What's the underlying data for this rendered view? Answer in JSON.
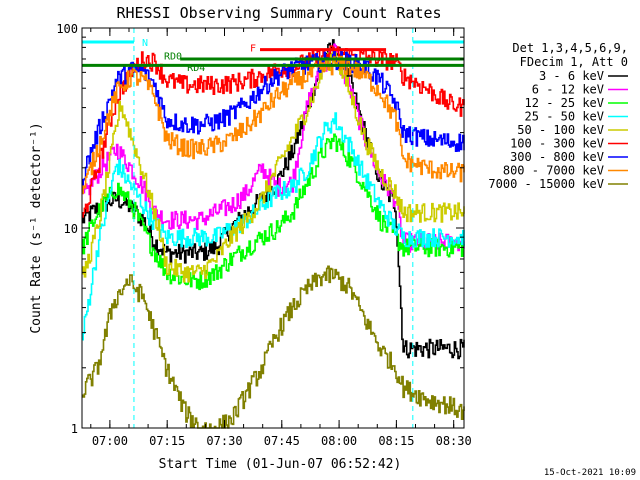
{
  "chart_data": {
    "type": "line",
    "title": "RHESSI Observing Summary Count Rates",
    "xlabel": "Start Time (01-Jun-07 06:52:42)",
    "ylabel": "Count Rate (s⁻¹ detector⁻¹)",
    "ylog": true,
    "ylim": [
      1,
      100
    ],
    "xlim_minutes_from_start": [
      0,
      100
    ],
    "x_ticks": [
      {
        "label": "07:00",
        "minutes": 7.3
      },
      {
        "label": "07:15",
        "minutes": 22.3
      },
      {
        "label": "07:30",
        "minutes": 37.3
      },
      {
        "label": "07:45",
        "minutes": 52.3
      },
      {
        "label": "08:00",
        "minutes": 67.3
      },
      {
        "label": "08:15",
        "minutes": 82.3
      },
      {
        "label": "08:30",
        "minutes": 97.3
      }
    ],
    "y_ticks": [
      {
        "label": "1",
        "value": 1
      },
      {
        "label": "10",
        "value": 10
      },
      {
        "label": "100",
        "value": 100
      }
    ],
    "legend": {
      "header": [
        "Det 1,3,4,5,6,9,",
        "FDecim 1, Att 0"
      ],
      "placement": "right"
    },
    "series": [
      {
        "name": "3 - 6 keV",
        "color": "#000000",
        "x": [
          0,
          5,
          9,
          12,
          16,
          19,
          22,
          27,
          31,
          35,
          39,
          43,
          47,
          51,
          55,
          59,
          63,
          66,
          70,
          74,
          78,
          82,
          84,
          90,
          96,
          100
        ],
        "values": [
          11,
          13,
          14,
          13,
          11,
          8.5,
          7.5,
          7.5,
          7.5,
          8,
          10,
          12,
          14,
          17,
          24,
          40,
          70,
          82,
          55,
          30,
          17,
          13,
          2.5,
          2.5,
          2.5,
          2.5
        ]
      },
      {
        "name": "6 - 12 keV",
        "color": "#ff00ff",
        "x": [
          0,
          5,
          9,
          12,
          16,
          19,
          22,
          27,
          31,
          35,
          39,
          43,
          47,
          51,
          55,
          59,
          63,
          66,
          70,
          74,
          78,
          82,
          84,
          90,
          96,
          100
        ],
        "values": [
          14,
          20,
          25,
          21,
          16,
          12,
          11,
          11,
          11,
          12,
          13,
          15,
          20,
          16,
          17,
          42,
          65,
          78,
          50,
          28,
          18,
          14,
          8.5,
          8.5,
          8.5,
          8.5
        ]
      },
      {
        "name": "12 - 25 keV",
        "color": "#00ff00",
        "x": [
          0,
          4,
          9,
          13,
          17,
          20,
          22,
          27,
          31,
          35,
          39,
          43,
          47,
          51,
          55,
          59,
          63,
          66,
          70,
          74,
          78,
          82,
          84,
          90,
          96,
          100
        ],
        "values": [
          8,
          12,
          16,
          13,
          9,
          7,
          6,
          5.5,
          5.5,
          6,
          7,
          8,
          9,
          10,
          12,
          17,
          24,
          28,
          22,
          16,
          11,
          9,
          8,
          8,
          8,
          8
        ]
      },
      {
        "name": "25 - 50 keV",
        "color": "#00ffff",
        "x": [
          0,
          4,
          9,
          13,
          17,
          20,
          22,
          27,
          31,
          35,
          39,
          43,
          47,
          51,
          55,
          59,
          63,
          66,
          70,
          74,
          78,
          82,
          84,
          90,
          96,
          100
        ],
        "values": [
          2.8,
          8,
          21,
          16,
          12,
          10,
          9,
          9,
          9,
          9,
          10,
          11,
          13,
          15,
          16,
          20,
          30,
          35,
          26,
          18,
          13,
          10,
          9,
          9,
          9,
          9
        ]
      },
      {
        "name": "50 - 100 keV",
        "color": "#cccc00",
        "x": [
          0,
          4,
          10,
          13,
          17,
          20,
          22,
          27,
          31,
          35,
          39,
          43,
          47,
          51,
          55,
          59,
          63,
          66,
          70,
          74,
          78,
          82,
          84,
          90,
          96,
          100
        ],
        "values": [
          5.5,
          10,
          42,
          28,
          16,
          10,
          6.5,
          6,
          6,
          7,
          9,
          11,
          14,
          20,
          28,
          40,
          62,
          75,
          48,
          28,
          19,
          15,
          12,
          12,
          12,
          12
        ]
      },
      {
        "name": "100 - 300 keV",
        "color": "#ff0000",
        "x": [
          0,
          4,
          9,
          13,
          16,
          19,
          22,
          27,
          31,
          35,
          39,
          43,
          47,
          51,
          55,
          59,
          63,
          66,
          70,
          74,
          78,
          82,
          84,
          90,
          96,
          100
        ],
        "values": [
          11,
          20,
          45,
          62,
          70,
          68,
          55,
          52,
          52,
          52,
          53,
          55,
          58,
          62,
          64,
          68,
          72,
          75,
          73,
          72,
          70,
          68,
          58,
          50,
          42,
          40
        ]
      },
      {
        "name": "300 - 800 keV",
        "color": "#0000ff",
        "x": [
          0,
          4,
          9,
          13,
          16,
          19,
          22,
          27,
          31,
          35,
          39,
          43,
          47,
          51,
          55,
          59,
          63,
          66,
          70,
          74,
          78,
          82,
          84,
          90,
          96,
          100
        ],
        "values": [
          18,
          30,
          55,
          62,
          60,
          52,
          35,
          33,
          33,
          34,
          37,
          42,
          50,
          58,
          63,
          66,
          68,
          70,
          68,
          64,
          55,
          42,
          30,
          28,
          27,
          27
        ]
      },
      {
        "name": "800 - 7000 keV",
        "color": "#ff8800",
        "x": [
          0,
          4,
          9,
          13,
          16,
          19,
          22,
          27,
          31,
          35,
          39,
          43,
          47,
          51,
          55,
          59,
          63,
          66,
          70,
          74,
          78,
          82,
          84,
          90,
          96,
          100
        ],
        "values": [
          15,
          25,
          48,
          58,
          55,
          45,
          28,
          25,
          25,
          26,
          28,
          32,
          38,
          46,
          53,
          58,
          63,
          66,
          64,
          58,
          48,
          35,
          22,
          20,
          19,
          19
        ]
      },
      {
        "name": "7000 - 15000 keV",
        "color": "#808000",
        "x": [
          0,
          4,
          8,
          12,
          16,
          19,
          22,
          27,
          31,
          35,
          39,
          43,
          47,
          51,
          55,
          59,
          63,
          66,
          70,
          74,
          78,
          82,
          84,
          90,
          96,
          100
        ],
        "values": [
          1.5,
          2,
          4.2,
          5.5,
          4.5,
          3,
          2,
          1.2,
          1,
          1,
          1.1,
          1.5,
          2,
          3,
          4,
          5,
          5.8,
          5.8,
          5,
          3.5,
          2.5,
          2,
          1.6,
          1.4,
          1.3,
          1.2
        ]
      }
    ],
    "annotations": [
      {
        "label": "N",
        "kind": "night",
        "color": "#00ffff",
        "segments": [
          [
            0,
            13.6
          ],
          [
            86.6,
            100
          ]
        ],
        "dashed_markers_minutes": [
          13.6,
          86.6,
          100
        ]
      },
      {
        "label": "RD0",
        "kind": "radiation",
        "color": "#008000",
        "value": 65,
        "segments": [
          [
            0,
            100
          ]
        ]
      },
      {
        "label": "RD4",
        "kind": "radiation",
        "color": "#008000",
        "value": 70,
        "segments": [
          [
            25.7,
            100
          ]
        ]
      },
      {
        "label": "F",
        "kind": "flare",
        "color": "#ff0000",
        "value": 78,
        "segments": [
          [
            46.6,
            79.6
          ]
        ]
      }
    ],
    "timestamp": "15-Oct-2021 10:09"
  }
}
